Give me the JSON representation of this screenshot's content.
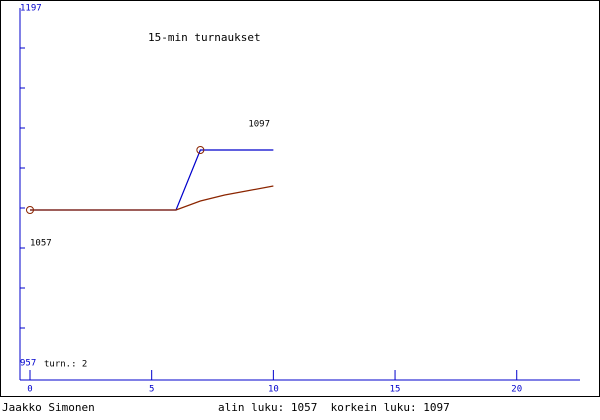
{
  "chart_data": {
    "type": "line",
    "title": "15-min turnaukset",
    "x": [
      0,
      1,
      2,
      3,
      4,
      5,
      6,
      7,
      8,
      9,
      10
    ],
    "series": [
      {
        "color": "#0000cc",
        "values": [
          1057,
          1057,
          1057,
          1057,
          1057,
          1057,
          1057,
          1097,
          1097,
          1097,
          1097
        ]
      },
      {
        "color": "#8b2500",
        "values": [
          1057,
          1057,
          1057,
          1057,
          1057,
          1057,
          1057,
          1063,
          1067,
          1070,
          1073
        ]
      }
    ],
    "xlim": [
      0,
      22.6
    ],
    "xticks": [
      0,
      5,
      10,
      15,
      20
    ],
    "ylim": [
      957,
      1197
    ],
    "yticks": [
      957,
      1197
    ],
    "annotations": [
      "1097",
      "1057"
    ],
    "games_label": "turn.: 2",
    "author": "Jaakko Simonen",
    "footer": "alin luku: 1057  korkein luku: 1097",
    "axis_color": "#0000cc"
  }
}
